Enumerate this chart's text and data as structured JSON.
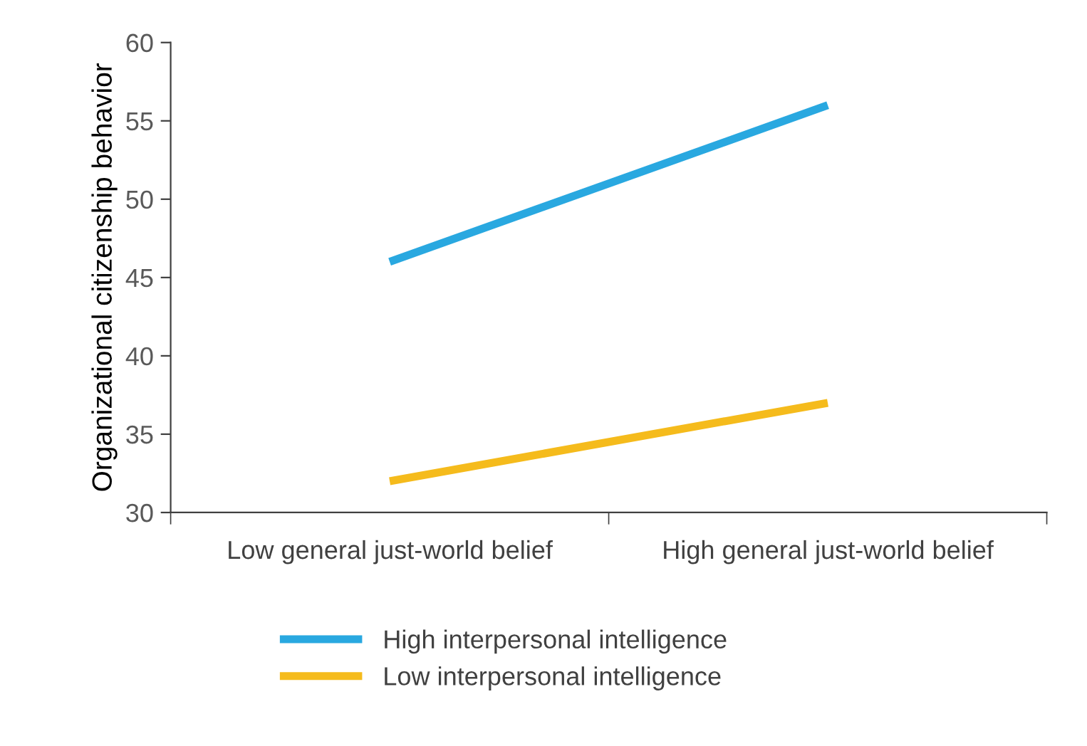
{
  "chart_data": {
    "type": "line",
    "ylabel": "Organizational citizenship behavior",
    "categories": [
      "Low general just-world belief",
      "High general just-world belief"
    ],
    "series": [
      {
        "name": "High interpersonal intelligence",
        "color": "#29a8e0",
        "values": [
          46,
          56
        ]
      },
      {
        "name": "Low interpersonal intelligence",
        "color": "#f5bb1c",
        "values": [
          32,
          37
        ]
      }
    ],
    "ylim": [
      30,
      60
    ],
    "yticks": [
      30,
      35,
      40,
      45,
      50,
      55,
      60
    ],
    "grid": false,
    "legend": "bottom",
    "marker": "none",
    "line_style": "solid"
  }
}
